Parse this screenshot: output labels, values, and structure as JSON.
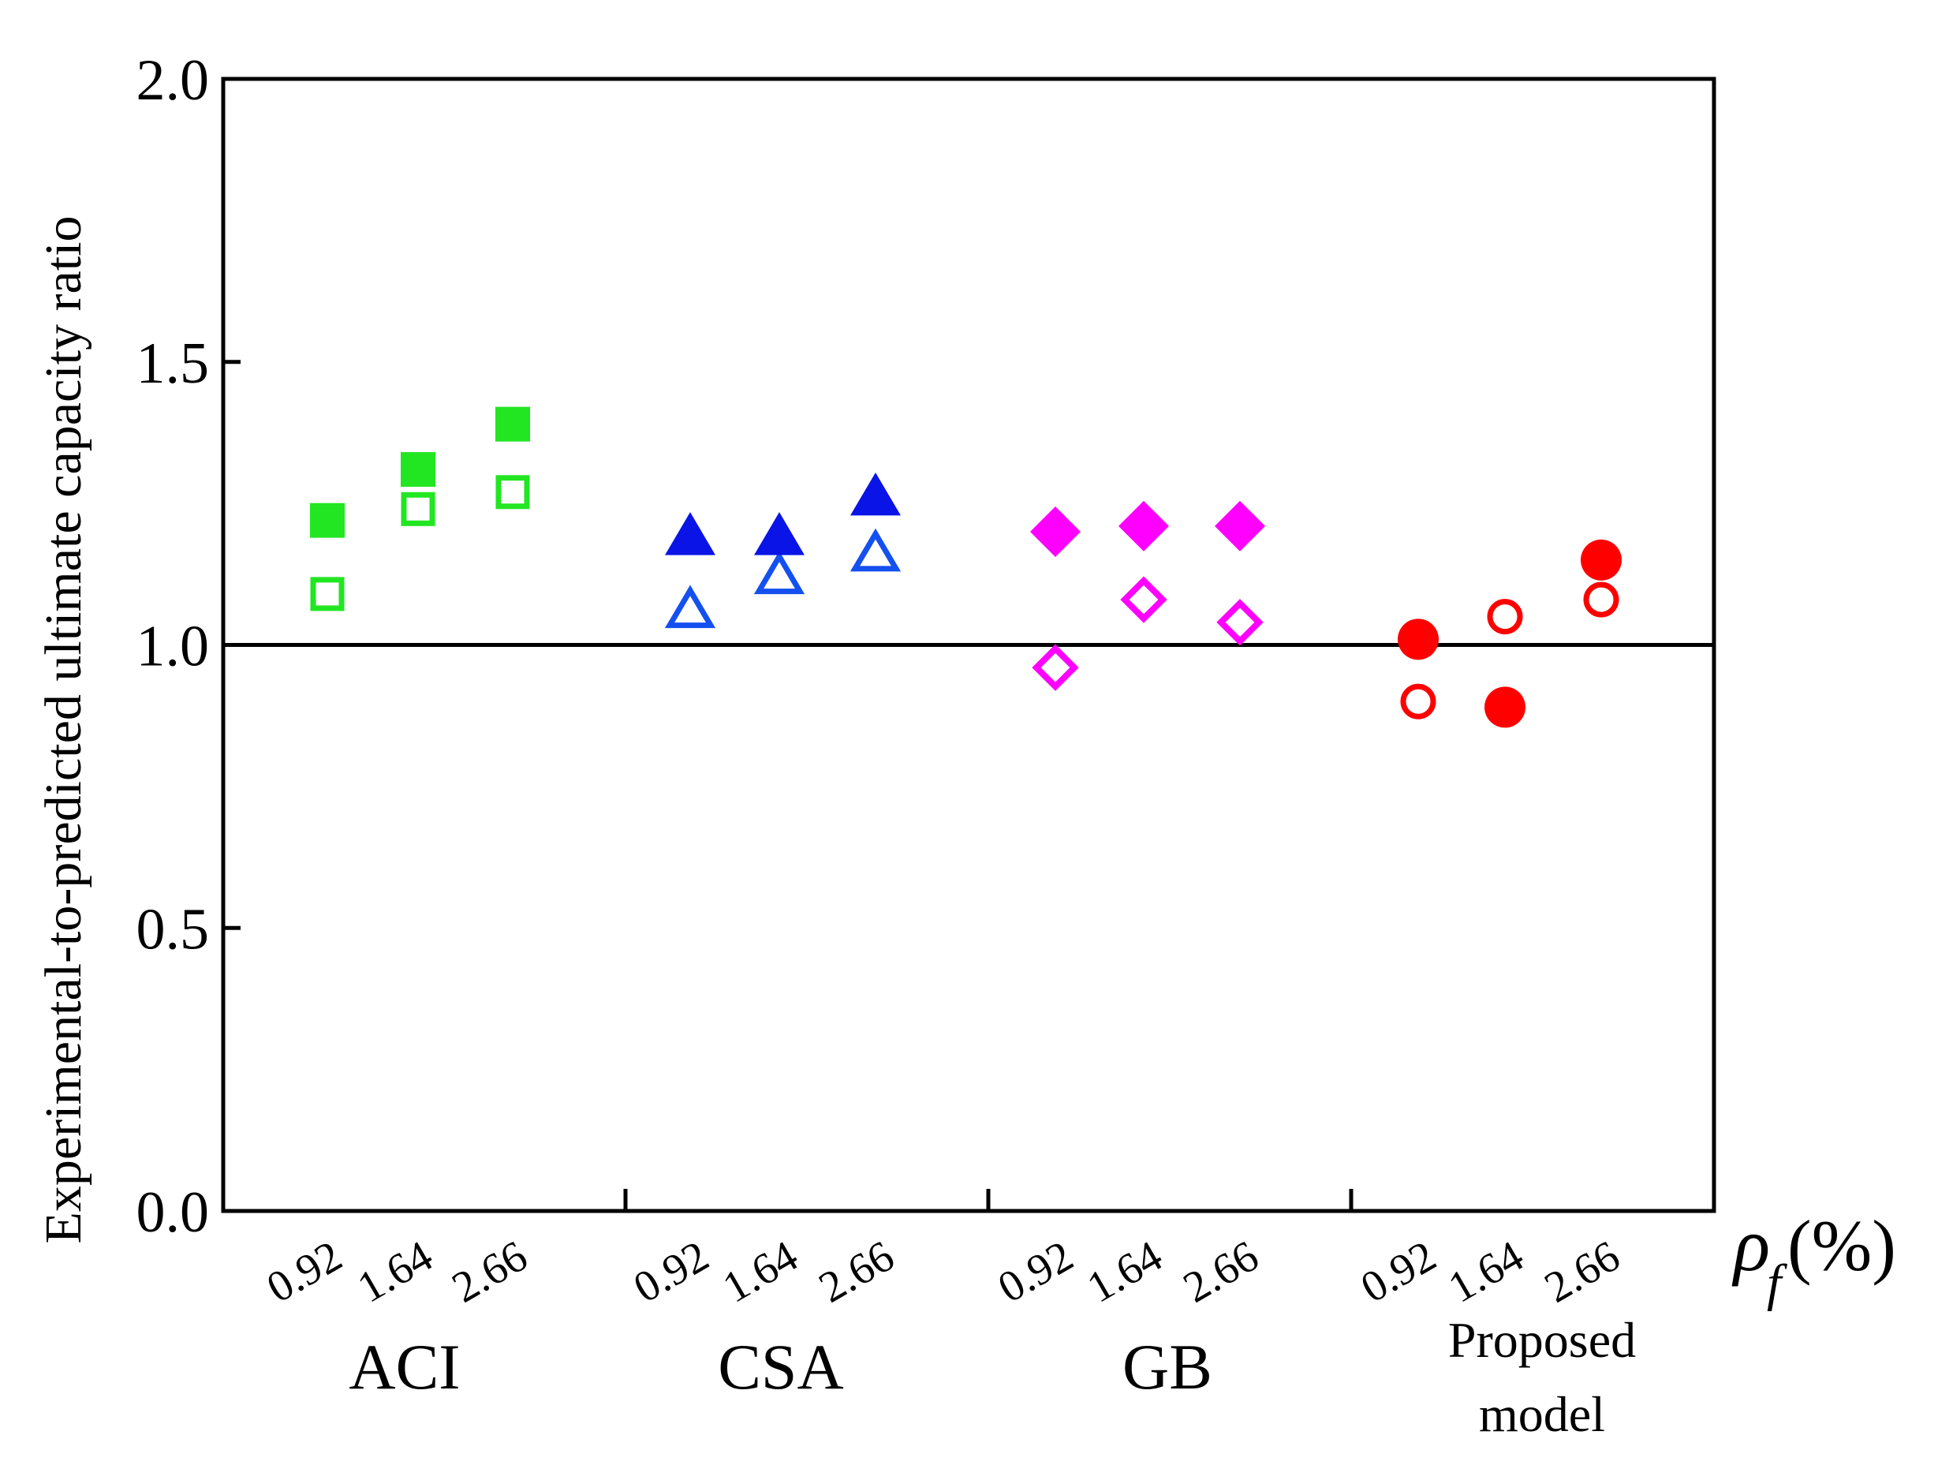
{
  "chart_data": {
    "type": "scatter",
    "title": "",
    "ylabel": "Experimental-to-predicted ultimate capacity ratio",
    "xlabel_symbol": "ρ",
    "xlabel_subscript": "f",
    "xlabel_unit": "(%)",
    "ylim": [
      0,
      2
    ],
    "yticks": [
      "0.0",
      "0.5",
      "1.0",
      "1.5",
      "2.0"
    ],
    "reference_line": 1.0,
    "group_tick_labels": [
      "0.92",
      "1.64",
      "2.66"
    ],
    "groups": [
      {
        "name": "ACI",
        "label_lines": [
          "ACI"
        ],
        "color": "#22e622",
        "marker": "square",
        "filled_values": [
          1.22,
          1.31,
          1.39
        ],
        "hollow_values": [
          1.09,
          1.24,
          1.27
        ]
      },
      {
        "name": "CSA",
        "label_lines": [
          "CSA"
        ],
        "color": "#0a14e6",
        "hollow_color": "#1450f0",
        "marker": "triangle",
        "filled_values": [
          1.19,
          1.19,
          1.26
        ],
        "hollow_values": [
          1.06,
          1.12,
          1.16
        ]
      },
      {
        "name": "GB",
        "label_lines": [
          "GB"
        ],
        "color": "#ff00ff",
        "marker": "diamond",
        "filled_values": [
          1.2,
          1.21,
          1.21
        ],
        "hollow_values": [
          0.96,
          1.08,
          1.04
        ]
      },
      {
        "name": "Proposed model",
        "label_lines": [
          "Proposed",
          "model"
        ],
        "color": "#ff0000",
        "marker": "circle",
        "filled_values": [
          1.01,
          0.89,
          1.15
        ],
        "hollow_values": [
          0.9,
          1.05,
          1.08
        ]
      }
    ]
  }
}
